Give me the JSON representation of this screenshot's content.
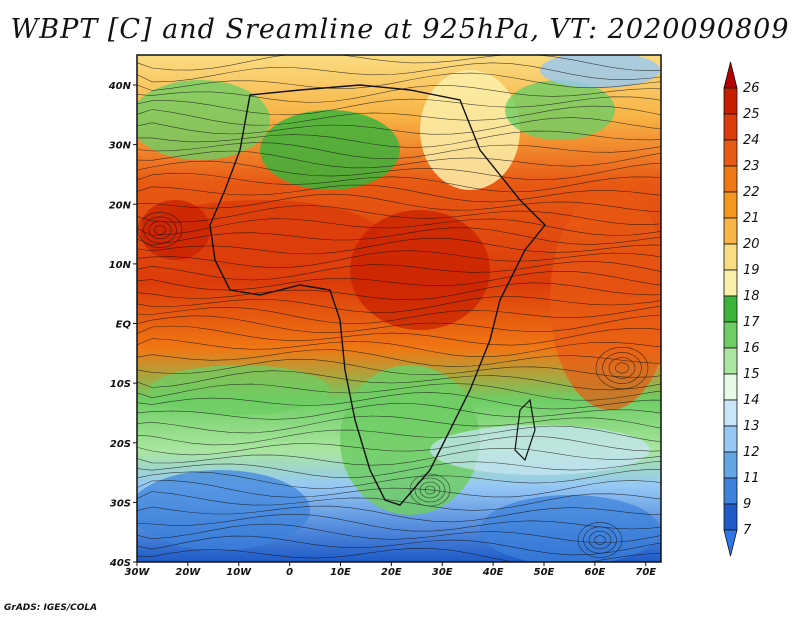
{
  "title": "WBPT [C] and Sreamline at 925hPa, VT: 2020090809",
  "credit": "GrADS: IGES/COLA",
  "map": {
    "lat_labels": [
      "40N",
      "30N",
      "20N",
      "10N",
      "EQ",
      "10S",
      "20S",
      "30S",
      "40S"
    ],
    "lon_labels": [
      "30W",
      "20W",
      "10W",
      "0",
      "10E",
      "20E",
      "30E",
      "40E",
      "50E",
      "60E",
      "70E"
    ]
  },
  "colorbar": {
    "labels": [
      "26",
      "25",
      "24",
      "23",
      "22",
      "21",
      "20",
      "19",
      "18",
      "17",
      "16",
      "15",
      "14",
      "13",
      "12",
      "11",
      "9",
      "7"
    ],
    "colors": [
      "#b50000",
      "#c81e00",
      "#dc3c0a",
      "#e85a14",
      "#f07814",
      "#f5961e",
      "#f8b446",
      "#fadc82",
      "#fbf0aa",
      "#3cb43c",
      "#6ecd64",
      "#aae6a0",
      "#e6fae6",
      "#c8e6fa",
      "#96c8f5",
      "#64a5e6",
      "#3c82dc",
      "#1e5ac8",
      "#2d78e6"
    ]
  }
}
